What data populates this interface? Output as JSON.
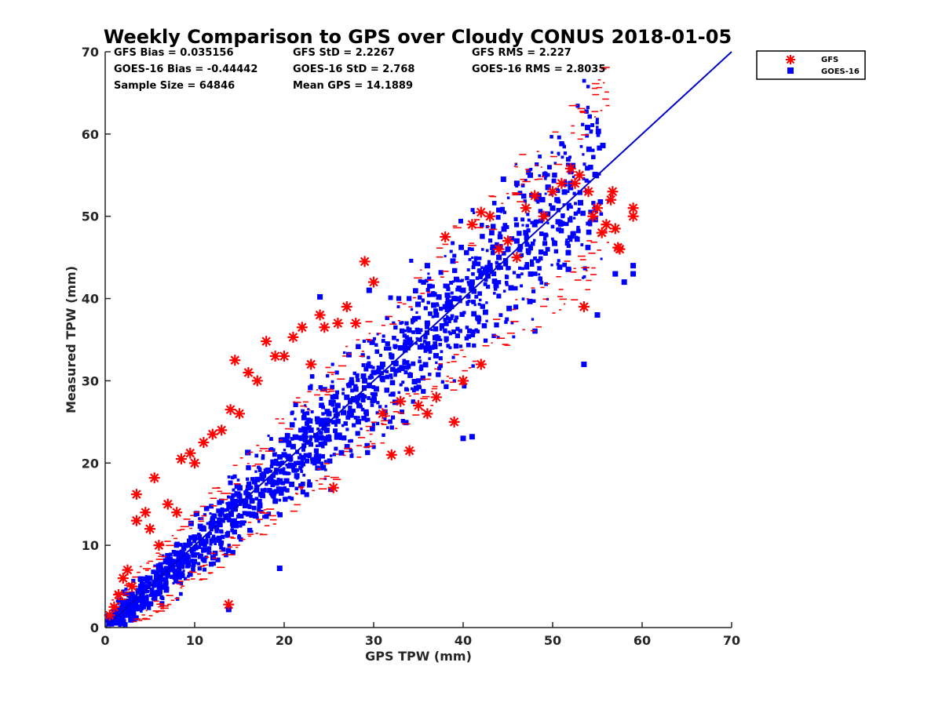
{
  "chart_data": {
    "type": "scatter",
    "title": "Weekly Comparison to GPS over Cloudy CONUS 2018-01-05",
    "xlabel": "GPS TPW (mm)",
    "ylabel": "Measured TPW (mm)",
    "xlim": [
      0,
      70
    ],
    "ylim": [
      0,
      70
    ],
    "xticks": [
      "0",
      "10",
      "20",
      "30",
      "40",
      "50",
      "60",
      "70"
    ],
    "yticks": [
      "0",
      "10",
      "20",
      "30",
      "40",
      "50",
      "60",
      "70"
    ],
    "grid": false,
    "legend_position": "outside-top-right",
    "stats": [
      {
        "text": "GFS Bias = 0.035156"
      },
      {
        "text": "GFS StD = 2.2267"
      },
      {
        "text": "GFS RMS = 2.227"
      },
      {
        "text": "GOES-16 Bias = -0.44442"
      },
      {
        "text": "GOES-16 StD = 2.768"
      },
      {
        "text": "GOES-16 RMS = 2.8035"
      },
      {
        "text": "Sample Size = 64846"
      },
      {
        "text": "Mean GPS = 14.1889"
      }
    ],
    "reference_line": {
      "color": "#0000cc",
      "points": [
        [
          0,
          0
        ],
        [
          70,
          70
        ]
      ]
    },
    "series": [
      {
        "name": "GFS",
        "marker": "asterisk",
        "color": "#ff0000",
        "points": [
          [
            0.5,
            1.5
          ],
          [
            1,
            2.5
          ],
          [
            1.5,
            4
          ],
          [
            2,
            6
          ],
          [
            2.5,
            7
          ],
          [
            3,
            5
          ],
          [
            3.5,
            16.2
          ],
          [
            3.5,
            13
          ],
          [
            4.5,
            14
          ],
          [
            5,
            12
          ],
          [
            5.5,
            18.2
          ],
          [
            6,
            10
          ],
          [
            7,
            15
          ],
          [
            8,
            14
          ],
          [
            8.5,
            20.5
          ],
          [
            9.5,
            21.2
          ],
          [
            10,
            20
          ],
          [
            11,
            22.5
          ],
          [
            12,
            23.5
          ],
          [
            13,
            24
          ],
          [
            14,
            26.5
          ],
          [
            13.8,
            2.8
          ],
          [
            14.5,
            32.5
          ],
          [
            15,
            26
          ],
          [
            16,
            31
          ],
          [
            17,
            30
          ],
          [
            18,
            34.8
          ],
          [
            19,
            33
          ],
          [
            20,
            33
          ],
          [
            21,
            35.3
          ],
          [
            22,
            36.5
          ],
          [
            23,
            32
          ],
          [
            24,
            38
          ],
          [
            24.5,
            36.5
          ],
          [
            25.5,
            17
          ],
          [
            26,
            37
          ],
          [
            27,
            39
          ],
          [
            28,
            37
          ],
          [
            29,
            44.5
          ],
          [
            30,
            42
          ],
          [
            31,
            26
          ],
          [
            32,
            21
          ],
          [
            33,
            27.5
          ],
          [
            34,
            21.5
          ],
          [
            35,
            27
          ],
          [
            36,
            26
          ],
          [
            37,
            28
          ],
          [
            38,
            47.5
          ],
          [
            39,
            25
          ],
          [
            40,
            30
          ],
          [
            41,
            49
          ],
          [
            42,
            32
          ],
          [
            42,
            50.5
          ],
          [
            43,
            50
          ],
          [
            44,
            46
          ],
          [
            45,
            47
          ],
          [
            46,
            45
          ],
          [
            47,
            51
          ],
          [
            48,
            52.5
          ],
          [
            49,
            50
          ],
          [
            50,
            53
          ],
          [
            51,
            54
          ],
          [
            52,
            55.8
          ],
          [
            52.5,
            54
          ],
          [
            53,
            55
          ],
          [
            53.5,
            39
          ],
          [
            54,
            53
          ],
          [
            54.5,
            50
          ],
          [
            55,
            51
          ],
          [
            55.5,
            48
          ],
          [
            56,
            49
          ],
          [
            56.5,
            52
          ],
          [
            56.7,
            53
          ],
          [
            57,
            48.5
          ],
          [
            57.5,
            46
          ],
          [
            59,
            51
          ],
          [
            59,
            50
          ],
          [
            57.3,
            46.2
          ]
        ]
      },
      {
        "name": "GOES-16",
        "marker": "square",
        "color": "#0000ff",
        "points": [
          [
            0.5,
            1
          ],
          [
            1,
            2
          ],
          [
            2,
            3
          ],
          [
            3,
            4
          ],
          [
            4,
            5
          ],
          [
            5,
            6
          ],
          [
            6,
            7
          ],
          [
            7,
            8
          ],
          [
            8,
            9
          ],
          [
            9,
            10
          ],
          [
            10,
            11
          ],
          [
            11,
            12
          ],
          [
            12,
            13
          ],
          [
            13,
            14
          ],
          [
            14,
            15
          ],
          [
            15,
            16
          ],
          [
            16,
            17
          ],
          [
            17,
            18
          ],
          [
            18,
            19
          ],
          [
            19,
            20
          ],
          [
            20,
            21
          ],
          [
            21,
            22
          ],
          [
            22,
            23
          ],
          [
            23,
            24
          ],
          [
            24,
            25
          ],
          [
            25,
            26
          ],
          [
            26,
            27
          ],
          [
            27,
            28
          ],
          [
            28,
            29
          ],
          [
            29,
            30
          ],
          [
            30,
            31
          ],
          [
            31,
            32
          ],
          [
            32,
            33
          ],
          [
            33,
            34
          ],
          [
            34,
            35
          ],
          [
            35,
            36
          ],
          [
            36,
            37
          ],
          [
            37,
            38
          ],
          [
            38,
            39
          ],
          [
            39,
            40
          ],
          [
            40,
            41
          ],
          [
            41,
            42
          ],
          [
            42,
            43
          ],
          [
            43,
            44
          ],
          [
            44,
            45
          ],
          [
            45,
            46
          ],
          [
            46,
            47
          ],
          [
            47,
            48
          ],
          [
            48,
            49
          ],
          [
            49,
            50
          ],
          [
            50,
            51
          ],
          [
            13.8,
            2.2
          ],
          [
            19.5,
            7.2
          ],
          [
            24,
            40.2
          ],
          [
            29.5,
            41
          ],
          [
            36,
            44
          ],
          [
            40,
            23
          ],
          [
            41,
            23.2
          ],
          [
            44.5,
            54.5
          ],
          [
            46,
            54
          ],
          [
            47.5,
            55
          ],
          [
            50.5,
            52
          ],
          [
            52,
            53.5
          ],
          [
            53.5,
            32
          ],
          [
            55,
            38
          ],
          [
            57,
            43
          ],
          [
            58,
            42
          ],
          [
            59,
            44
          ],
          [
            59,
            43
          ]
        ]
      }
    ]
  }
}
